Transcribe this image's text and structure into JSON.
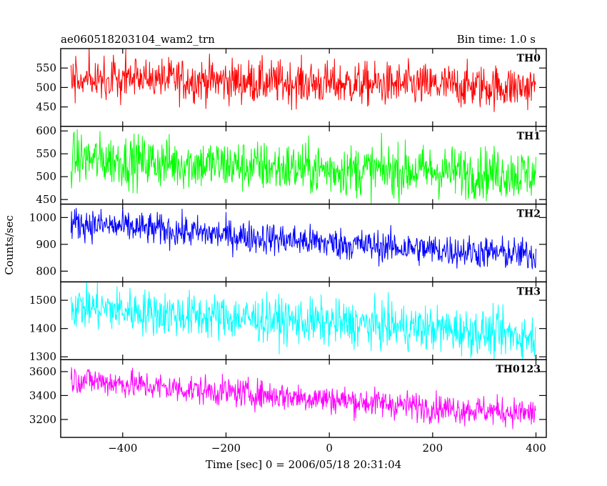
{
  "header": {
    "title": "ae060518203104_wam2_trn",
    "bin_time": "Bin time: 1.0 s"
  },
  "chart_data": {
    "type": "line",
    "xlabel": "Time [sec] 0 = 2006/05/18 20:31:04",
    "ylabel": "Counts/sec",
    "xlim": [
      -520,
      420
    ],
    "xticks": [
      -400,
      -200,
      0,
      200,
      400
    ],
    "x_start": -500,
    "x_end": 400,
    "panels": [
      {
        "name": "TH0",
        "color": "#ff0000",
        "ylim": [
          400,
          600
        ],
        "yticks": [
          450,
          500,
          550
        ],
        "trend": [
          [
            -500,
            525
          ],
          [
            -300,
            520
          ],
          [
            0,
            510
          ],
          [
            200,
            505
          ],
          [
            400,
            500
          ]
        ],
        "noise_sd": 28
      },
      {
        "name": "TH1",
        "color": "#00ff00",
        "ylim": [
          440,
          610
        ],
        "yticks": [
          450,
          500,
          550,
          600
        ],
        "trend": [
          [
            -500,
            540
          ],
          [
            -300,
            530
          ],
          [
            0,
            515
          ],
          [
            200,
            512
          ],
          [
            400,
            505
          ]
        ],
        "noise_sd": 28
      },
      {
        "name": "TH2",
        "color": "#0000ff",
        "ylim": [
          760,
          1050
        ],
        "yticks": [
          800,
          900,
          1000
        ],
        "trend": [
          [
            -500,
            980
          ],
          [
            -300,
            950
          ],
          [
            0,
            905
          ],
          [
            200,
            880
          ],
          [
            400,
            860
          ]
        ],
        "noise_sd": 30
      },
      {
        "name": "TH3",
        "color": "#00ffff",
        "ylim": [
          1290,
          1565
        ],
        "yticks": [
          1300,
          1400,
          1500
        ],
        "trend": [
          [
            -500,
            1480
          ],
          [
            -300,
            1450
          ],
          [
            0,
            1420
          ],
          [
            200,
            1400
          ],
          [
            400,
            1370
          ]
        ],
        "noise_sd": 40
      },
      {
        "name": "TH0123",
        "color": "#ff00ff",
        "ylim": [
          3050,
          3700
        ],
        "yticks": [
          3200,
          3400,
          3600
        ],
        "trend": [
          [
            -500,
            3540
          ],
          [
            -300,
            3460
          ],
          [
            0,
            3370
          ],
          [
            200,
            3300
          ],
          [
            400,
            3250
          ]
        ],
        "noise_sd": 60
      }
    ]
  }
}
